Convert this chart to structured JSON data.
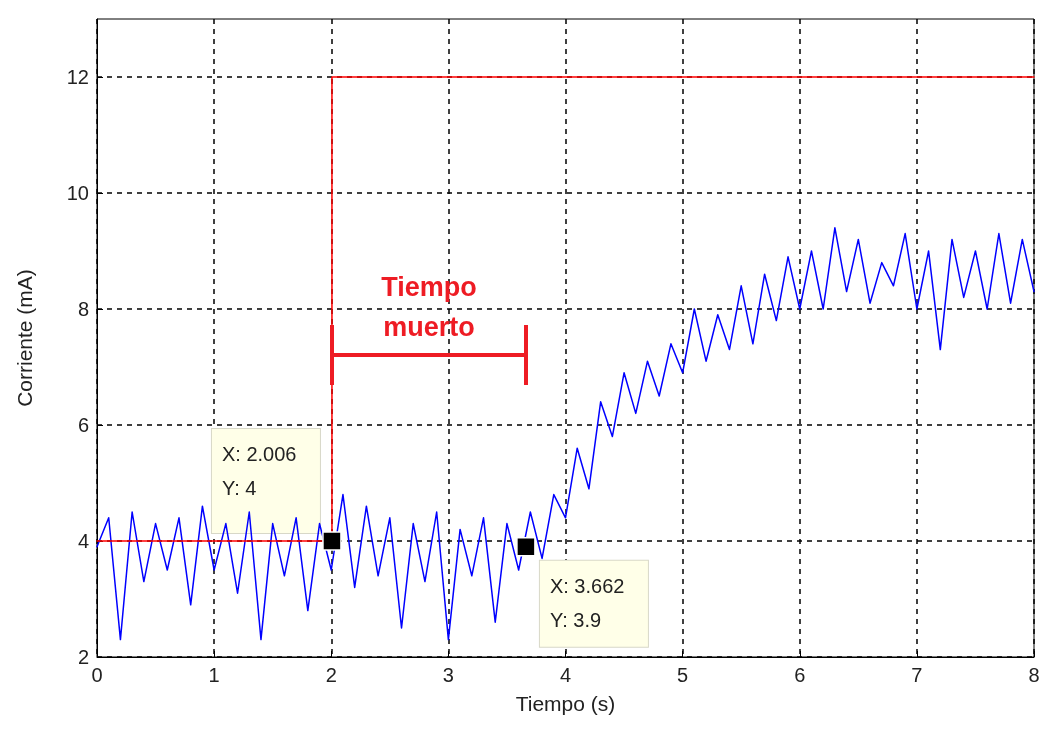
{
  "chart_data": {
    "type": "line",
    "xlabel": "Tiempo (s)",
    "ylabel": "Corriente (mA)",
    "xlim": [
      0,
      8
    ],
    "xticks": [
      0,
      1,
      2,
      3,
      4,
      5,
      6,
      7,
      8
    ],
    "ylim": [
      2,
      13
    ],
    "yticks": [
      2,
      4,
      6,
      8,
      10,
      12
    ],
    "grid": true,
    "line_style": "solid",
    "series": [
      {
        "color": "#0000ff",
        "x": [
          0,
          0.1,
          0.2,
          0.3,
          0.4,
          0.5,
          0.6,
          0.7,
          0.8,
          0.9,
          1.0,
          1.1,
          1.2,
          1.3,
          1.4,
          1.5,
          1.6,
          1.7,
          1.8,
          1.9,
          2.0,
          2.1,
          2.2,
          2.3,
          2.4,
          2.5,
          2.6,
          2.7,
          2.8,
          2.9,
          3.0,
          3.1,
          3.2,
          3.3,
          3.4,
          3.5,
          3.6,
          3.7,
          3.8,
          3.9,
          4.0,
          4.1,
          4.2,
          4.3,
          4.4,
          4.5,
          4.6,
          4.7,
          4.8,
          4.9,
          5.0,
          5.1,
          5.2,
          5.3,
          5.4,
          5.5,
          5.6,
          5.7,
          5.8,
          5.9,
          6.0,
          6.1,
          6.2,
          6.3,
          6.4,
          6.5,
          6.6,
          6.7,
          6.8,
          6.9,
          7.0,
          7.1,
          7.2,
          7.3,
          7.4,
          7.5,
          7.6,
          7.7,
          7.8,
          7.9,
          8.0
        ],
        "values": [
          3.9,
          4.4,
          2.3,
          4.5,
          3.3,
          4.3,
          3.5,
          4.4,
          2.9,
          4.6,
          3.5,
          4.3,
          3.1,
          4.5,
          2.3,
          4.3,
          3.4,
          4.4,
          2.8,
          4.3,
          3.5,
          4.8,
          3.2,
          4.6,
          3.4,
          4.4,
          2.5,
          4.3,
          3.3,
          4.5,
          2.3,
          4.2,
          3.4,
          4.4,
          2.6,
          4.3,
          3.5,
          4.5,
          3.7,
          4.8,
          4.4,
          5.6,
          4.9,
          6.4,
          5.8,
          6.9,
          6.2,
          7.1,
          6.5,
          7.4,
          6.9,
          8.0,
          7.1,
          7.9,
          7.3,
          8.4,
          7.4,
          8.6,
          7.8,
          8.9,
          8.0,
          9.0,
          8.0,
          9.4,
          8.3,
          9.2,
          8.1,
          8.8,
          8.4,
          9.3,
          8.0,
          9.0,
          7.3,
          9.2,
          8.2,
          9.0,
          8.0,
          9.3,
          8.1,
          9.2,
          8.3
        ]
      },
      {
        "color": "#ff0000",
        "x": [
          0,
          2.006,
          2.006,
          8
        ],
        "values": [
          4,
          4,
          12,
          12
        ]
      }
    ],
    "annotations": [
      {
        "text": "X: 2.006\nY: 4",
        "x": 2.006,
        "y": 4
      },
      {
        "text": "X: 3.662\nY: 3.9",
        "x": 3.662,
        "y": 3.9
      },
      "Tiempo\nmuerto"
    ]
  }
}
